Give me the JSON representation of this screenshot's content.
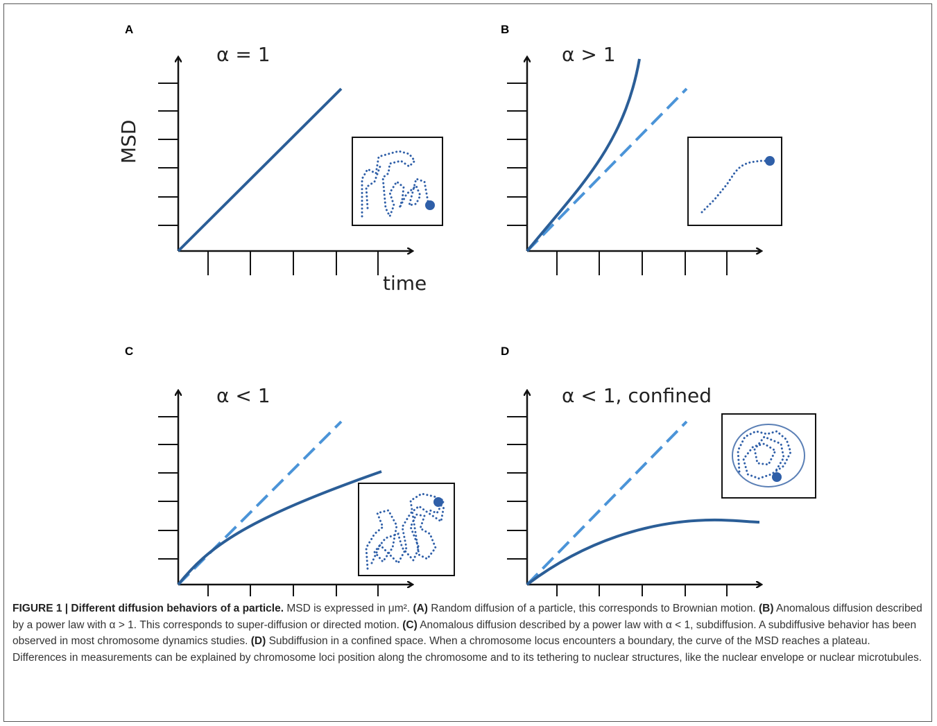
{
  "panels": [
    {
      "label": "A",
      "title": "α = 1",
      "y_label": "MSD",
      "x_label": "time"
    },
    {
      "label": "B",
      "title": "α > 1"
    },
    {
      "label": "C",
      "title": "α < 1"
    },
    {
      "label": "D",
      "title": "α < 1, confined"
    }
  ],
  "caption": {
    "title": "FIGURE 1 | Different diffusion behaviors of a particle.",
    "intro": "MSD is expressed in μm².",
    "parts": [
      {
        "label": "(A)",
        "text": "Random diffusion of a particle, this corresponds to Brownian motion."
      },
      {
        "label": "(B)",
        "text": "Anomalous diffusion described by a power law with α > 1. This corresponds to super-diffusion or directed motion."
      },
      {
        "label": "(C)",
        "text": "Anomalous diffusion described by a power law with α < 1, subdiffusion. A subdiffusive behavior has been observed in most chromosome dynamics studies."
      },
      {
        "label": "(D)",
        "text": "Subdiffusion in a confined space. When a chromosome locus encounters a boundary, the curve of the MSD reaches a plateau. Differences in measurements can be explained by chromosome loci position along the chromosome and to its tethering to nuclear structures, like the nuclear envelope or nuclear microtubules."
      }
    ]
  }
}
